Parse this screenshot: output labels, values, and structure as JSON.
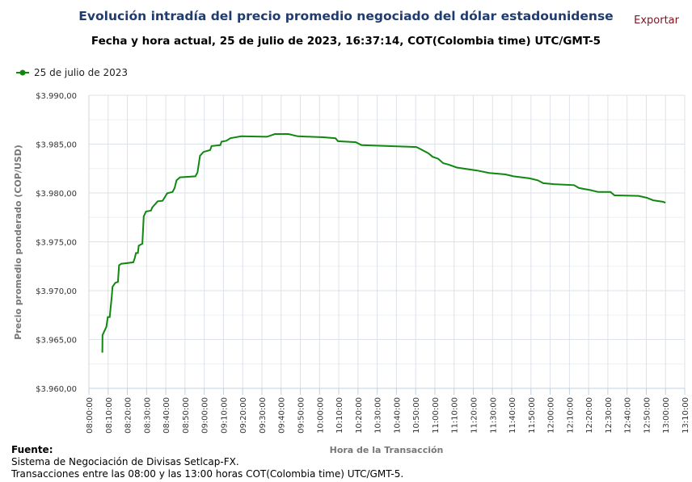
{
  "header": {
    "title": "Evolución intradía del precio promedio negociado del dólar estadounidense",
    "subtitle": "Fecha y hora actual, 25 de julio de 2023, 16:37:14, COT(Colombia time) UTC/GMT-5",
    "export_label": "Exportar"
  },
  "footer": {
    "heading": "Fuente:",
    "line1": "Sistema de Negociación de Divisas Setlcap-FX.",
    "line2": "Transacciones entre las 08:00 y las 13:00 horas COT(Colombia time) UTC/GMT-5."
  },
  "colors": {
    "series": "#108810",
    "title": "#1f3b6f",
    "export": "#7a1420",
    "grid": "#dde2ea"
  },
  "chart_data": {
    "type": "line",
    "title": "Evolución intradía del precio promedio negociado del dólar estadounidense",
    "xlabel": "Hora de la Transacción",
    "ylabel": "Precio promedio ponderado (COP/USD)",
    "ylim": [
      3960,
      3990
    ],
    "xlim": [
      "08:00:00",
      "13:10:00"
    ],
    "grid": true,
    "legend_placement": "top-left",
    "yticks": [
      "$3.960,00",
      "$3.965,00",
      "$3.970,00",
      "$3.975,00",
      "$3.980,00",
      "$3.985,00",
      "$3.990,00"
    ],
    "xticks": [
      "08:00:00",
      "08:10:00",
      "08:20:00",
      "08:30:00",
      "08:40:00",
      "08:50:00",
      "09:00:00",
      "09:10:00",
      "09:20:00",
      "09:30:00",
      "09:40:00",
      "09:50:00",
      "10:00:00",
      "10:10:00",
      "10:20:00",
      "10:30:00",
      "10:40:00",
      "10:50:00",
      "11:00:00",
      "11:10:00",
      "11:20:00",
      "11:30:00",
      "11:40:00",
      "11:50:00",
      "12:00:00",
      "12:10:00",
      "12:20:00",
      "12:30:00",
      "12:40:00",
      "12:50:00",
      "13:00:00",
      "13:10:00"
    ],
    "series": [
      {
        "name": "25 de julio de 2023",
        "points": [
          [
            "08:07:00",
            3963.66
          ],
          [
            "08:07:05",
            3965.45
          ],
          [
            "08:09:06",
            3966.3
          ],
          [
            "08:09:48",
            3967.3
          ],
          [
            "08:10:48",
            3967.3
          ],
          [
            "08:11:54",
            3969.45
          ],
          [
            "08:12:18",
            3970.4
          ],
          [
            "08:13:42",
            3970.8
          ],
          [
            "08:15:06",
            3970.9
          ],
          [
            "08:15:42",
            3972.6
          ],
          [
            "08:16:48",
            3972.75
          ],
          [
            "08:23:06",
            3972.9
          ],
          [
            "08:23:48",
            3973.3
          ],
          [
            "08:24:30",
            3973.85
          ],
          [
            "08:25:30",
            3973.85
          ],
          [
            "08:25:54",
            3974.6
          ],
          [
            "08:27:48",
            3974.8
          ],
          [
            "08:28:30",
            3977.6
          ],
          [
            "08:29:42",
            3978.1
          ],
          [
            "08:32:18",
            3978.2
          ],
          [
            "08:32:54",
            3978.5
          ],
          [
            "08:35:48",
            3979.15
          ],
          [
            "08:38:18",
            3979.2
          ],
          [
            "08:39:18",
            3979.5
          ],
          [
            "08:40:42",
            3979.97
          ],
          [
            "08:43:30",
            3980.1
          ],
          [
            "08:44:36",
            3980.5
          ],
          [
            "08:45:36",
            3981.3
          ],
          [
            "08:47:24",
            3981.6
          ],
          [
            "08:55:24",
            3981.7
          ],
          [
            "08:56:30",
            3982.1
          ],
          [
            "08:57:48",
            3983.8
          ],
          [
            "08:59:36",
            3984.2
          ],
          [
            "09:03:06",
            3984.4
          ],
          [
            "09:03:48",
            3984.8
          ],
          [
            "09:08:24",
            3984.9
          ],
          [
            "09:09:00",
            3985.25
          ],
          [
            "09:11:30",
            3985.35
          ],
          [
            "09:13:36",
            3985.6
          ],
          [
            "09:19:12",
            3985.8
          ],
          [
            "09:32:36",
            3985.75
          ],
          [
            "09:36:48",
            3986.03
          ],
          [
            "09:43:48",
            3986.03
          ],
          [
            "09:48:42",
            3985.8
          ],
          [
            "10:02:00",
            3985.7
          ],
          [
            "10:08:18",
            3985.6
          ],
          [
            "10:09:36",
            3985.3
          ],
          [
            "10:18:48",
            3985.2
          ],
          [
            "10:21:48",
            3984.9
          ],
          [
            "10:35:42",
            3984.8
          ],
          [
            "10:50:24",
            3984.7
          ],
          [
            "10:52:30",
            3984.5
          ],
          [
            "10:56:42",
            3984.05
          ],
          [
            "10:58:48",
            3983.7
          ],
          [
            "11:01:42",
            3983.5
          ],
          [
            "11:04:18",
            3983.05
          ],
          [
            "11:07:12",
            3982.9
          ],
          [
            "11:11:24",
            3982.6
          ],
          [
            "11:22:00",
            3982.3
          ],
          [
            "11:28:18",
            3982.05
          ],
          [
            "11:36:42",
            3981.9
          ],
          [
            "11:40:54",
            3981.7
          ],
          [
            "11:49:18",
            3981.5
          ],
          [
            "11:53:30",
            3981.3
          ],
          [
            "11:56:24",
            3981.0
          ],
          [
            "12:02:00",
            3980.9
          ],
          [
            "12:12:24",
            3980.8
          ],
          [
            "12:15:00",
            3980.5
          ],
          [
            "12:20:48",
            3980.3
          ],
          [
            "12:25:00",
            3980.1
          ],
          [
            "12:31:24",
            3980.1
          ],
          [
            "12:33:30",
            3979.75
          ],
          [
            "12:46:00",
            3979.7
          ],
          [
            "12:50:18",
            3979.5
          ],
          [
            "12:53:36",
            3979.25
          ],
          [
            "12:58:42",
            3979.1
          ],
          [
            "13:00:00",
            3979.0
          ]
        ]
      }
    ]
  }
}
